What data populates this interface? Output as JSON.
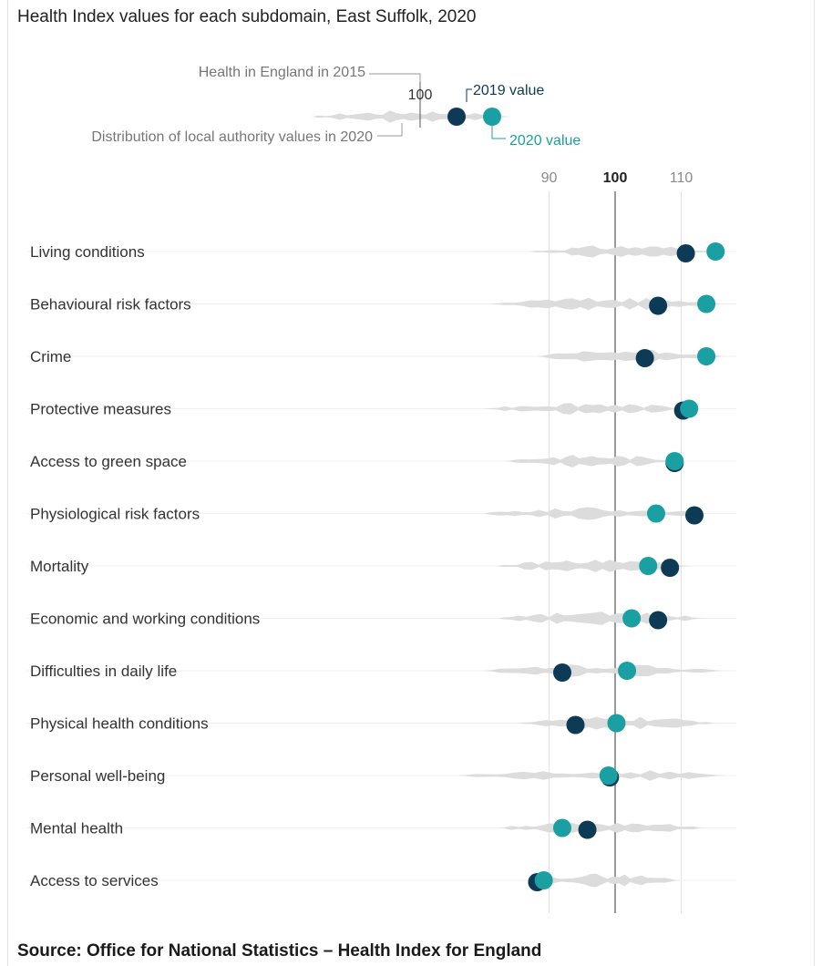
{
  "title": "Health Index values for each subdomain, East Suffolk, 2020",
  "source": "Source: Office for National Statistics – Health Index for England",
  "legend": {
    "reference_label": "Health in England in 2015",
    "reference_value": "100",
    "distribution_label": "Distribution of local authority values in 2020",
    "value_2019_label": "2019 value",
    "value_2020_label": "2020 value",
    "color_2019": "#0d3b55",
    "color_2020": "#1aa0a3"
  },
  "chart_data": {
    "type": "scatter",
    "title": "Health Index values for each subdomain, East Suffolk, 2020",
    "x_ticks": [
      90,
      100,
      110
    ],
    "xlim": [
      80,
      117
    ],
    "reference_value": 100,
    "categories": [
      "Living conditions",
      "Behavioural risk factors",
      "Crime",
      "Protective measures",
      "Access to green space",
      "Physiological risk factors",
      "Mortality",
      "Economic and working conditions",
      "Difficulties in daily life",
      "Physical health conditions",
      "Personal well-being",
      "Mental health",
      "Access to services"
    ],
    "series": [
      {
        "name": "2019 value",
        "color": "#0d3b55",
        "values": [
          110.7,
          106.5,
          104.5,
          110.3,
          109.0,
          112.0,
          108.3,
          106.5,
          92.0,
          94.0,
          99.2,
          95.8,
          88.2
        ]
      },
      {
        "name": "2020 value",
        "color": "#1aa0a3",
        "values": [
          115.2,
          113.8,
          113.8,
          111.2,
          109.0,
          106.2,
          105.0,
          102.5,
          101.8,
          100.2,
          99.0,
          92.0,
          89.2
        ]
      }
    ],
    "distribution_ranges": [
      [
        87,
        117
      ],
      [
        81,
        116
      ],
      [
        88,
        117
      ],
      [
        80,
        111
      ],
      [
        83,
        110
      ],
      [
        80,
        114
      ],
      [
        82,
        112
      ],
      [
        82,
        114
      ],
      [
        80,
        117
      ],
      [
        85,
        116
      ],
      [
        76,
        117
      ],
      [
        82,
        114
      ],
      [
        86,
        110
      ]
    ]
  }
}
